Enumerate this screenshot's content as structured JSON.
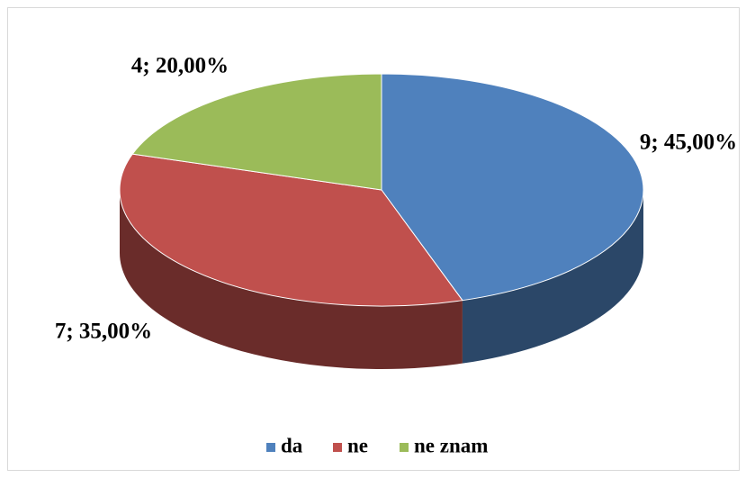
{
  "chart_data": {
    "type": "pie",
    "categories": [
      "da",
      "ne",
      "ne znam"
    ],
    "values": [
      9,
      7,
      4
    ],
    "value_labels": [
      "9; 45,00%",
      "7; 35,00%",
      "4; 20,00%"
    ],
    "colors": [
      "#4f81bd",
      "#c0504d",
      "#9bbb59"
    ],
    "legend": "bottom"
  }
}
